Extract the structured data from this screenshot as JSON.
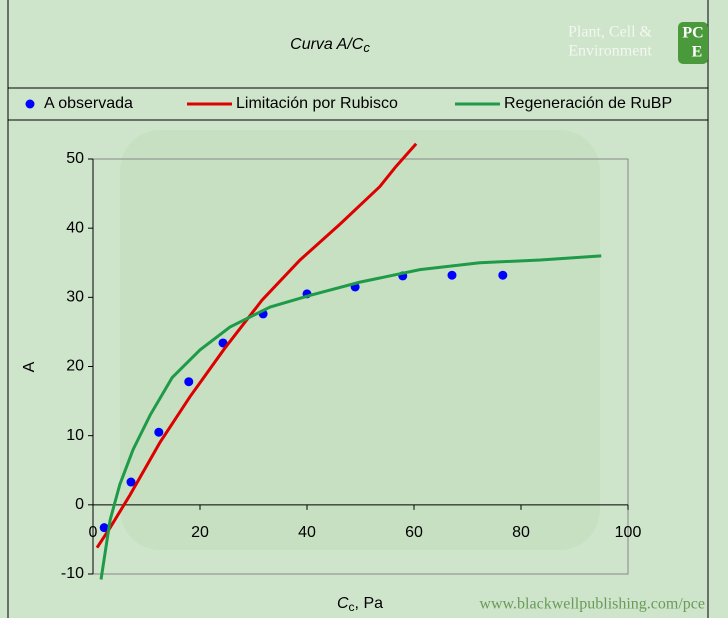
{
  "chart_data": {
    "type": "scatter",
    "title": {
      "main": "Curva A/C",
      "sub": "c"
    },
    "xlabel": {
      "main": "C",
      "sub": "c",
      "rest": ", Pa"
    },
    "ylabel": "A",
    "xlim": [
      0,
      100
    ],
    "xticks": [
      0,
      20,
      40,
      60,
      80,
      100
    ],
    "ylim": [
      -10,
      50
    ],
    "yticks": [
      -10,
      0,
      10,
      20,
      30,
      40,
      50
    ],
    "legend": "top",
    "series": [
      {
        "name": "A observada",
        "color": "#0000ff",
        "style": "markers",
        "x": [
          2.1,
          7.1,
          12.3,
          17.9,
          24.3,
          31.8,
          40,
          49,
          57.9,
          67.1,
          76.6
        ],
        "values": [
          -3.3,
          3.3,
          10.5,
          17.8,
          23.4,
          27.6,
          30.5,
          31.5,
          33.1,
          33.2,
          33.2
        ]
      },
      {
        "name": "Limitación por Rubisco",
        "color": "#dd0000",
        "style": "line",
        "x": [
          0.75,
          3.2,
          6.9,
          12.5,
          18.1,
          24.5,
          31.6,
          38.7,
          46.2,
          53.6,
          56.5,
          60.4
        ],
        "values": [
          -6.2,
          -3.3,
          1.4,
          9,
          15.6,
          22.5,
          29.6,
          35.4,
          40.6,
          46,
          48.8,
          52.2
        ]
      },
      {
        "name": "Regeneración de RuBP",
        "color": "#1f9a48",
        "style": "line",
        "x": [
          1.5,
          3.2,
          5,
          7.5,
          10.7,
          14.8,
          20,
          25.6,
          33.1,
          40.6,
          49.9,
          61.1,
          72.3,
          83.6,
          95
        ],
        "values": [
          -10.8,
          -2.2,
          2.9,
          8,
          13,
          18.4,
          22.4,
          25.7,
          28.6,
          30.3,
          32.2,
          34,
          35,
          35.4,
          36
        ]
      }
    ]
  },
  "watermark": {
    "journal": [
      "Plant, Cell &",
      "Environment"
    ],
    "logo": [
      "PC",
      "E"
    ],
    "url": "www.blackwellpublishing.com/pce"
  }
}
